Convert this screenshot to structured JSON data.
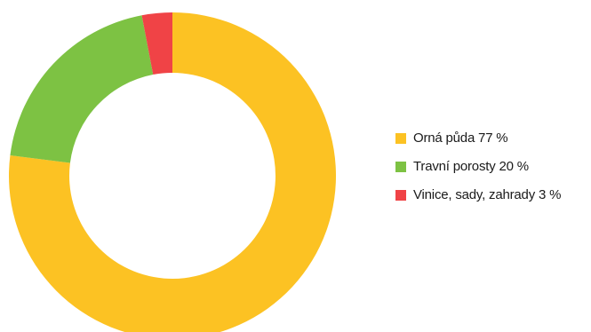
{
  "chart_data": {
    "type": "pie",
    "donut": true,
    "categories": [
      "Orná půda",
      "Travní porosty",
      "Vinice, sady, zahrady"
    ],
    "values": [
      77,
      20,
      3
    ],
    "unit": "%",
    "colors": [
      "#fcc223",
      "#7dc243",
      "#f04346"
    ],
    "legend_labels": [
      "Orná půda 77 %",
      "Travní porosty 20 %",
      "Vinice, sady, zahrady 3 %"
    ],
    "legend_placement": "right"
  }
}
